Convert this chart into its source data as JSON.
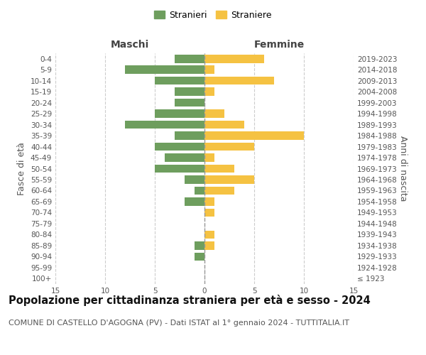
{
  "age_groups": [
    "100+",
    "95-99",
    "90-94",
    "85-89",
    "80-84",
    "75-79",
    "70-74",
    "65-69",
    "60-64",
    "55-59",
    "50-54",
    "45-49",
    "40-44",
    "35-39",
    "30-34",
    "25-29",
    "20-24",
    "15-19",
    "10-14",
    "5-9",
    "0-4"
  ],
  "birth_years": [
    "≤ 1923",
    "1924-1928",
    "1929-1933",
    "1934-1938",
    "1939-1943",
    "1944-1948",
    "1949-1953",
    "1954-1958",
    "1959-1963",
    "1964-1968",
    "1969-1973",
    "1974-1978",
    "1979-1983",
    "1984-1988",
    "1989-1993",
    "1994-1998",
    "1999-2003",
    "2004-2008",
    "2009-2013",
    "2014-2018",
    "2019-2023"
  ],
  "males": [
    0,
    0,
    1,
    1,
    0,
    0,
    0,
    2,
    1,
    2,
    5,
    4,
    5,
    3,
    8,
    5,
    3,
    3,
    5,
    8,
    3
  ],
  "females": [
    0,
    0,
    0,
    1,
    1,
    0,
    1,
    1,
    3,
    5,
    3,
    1,
    5,
    10,
    4,
    2,
    0,
    1,
    7,
    1,
    6
  ],
  "male_color": "#6e9e5e",
  "female_color": "#f5c242",
  "background_color": "#ffffff",
  "grid_color": "#cccccc",
  "title": "Popolazione per cittadinanza straniera per età e sesso - 2024",
  "subtitle": "COMUNE DI CASTELLO D'AGOGNA (PV) - Dati ISTAT al 1° gennaio 2024 - TUTTITALIA.IT",
  "ylabel_left": "Fasce di età",
  "ylabel_right": "Anni di nascita",
  "xlabel_left": "Maschi",
  "xlabel_right": "Femmine",
  "legend_stranieri": "Stranieri",
  "legend_straniere": "Straniere",
  "xlim": 15,
  "title_fontsize": 10.5,
  "subtitle_fontsize": 8,
  "axis_label_fontsize": 9,
  "tick_fontsize": 7.5
}
